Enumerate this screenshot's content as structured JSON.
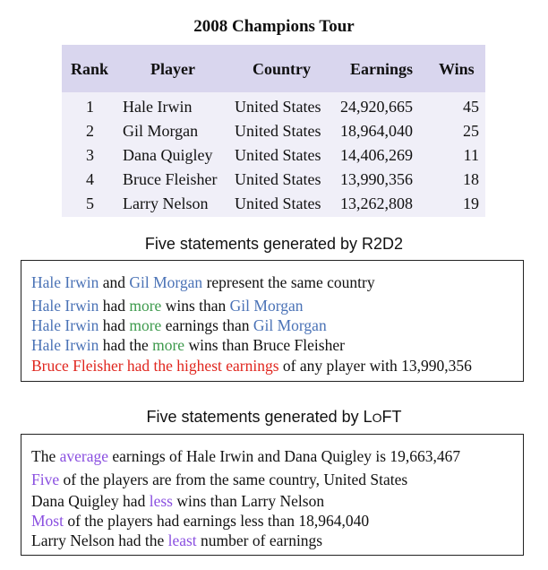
{
  "table": {
    "title": "2008 Champions Tour",
    "headers": [
      "Rank",
      "Player",
      "Country",
      "Earnings",
      "Wins"
    ],
    "rows": [
      [
        "1",
        "Hale Irwin",
        "United States",
        "24,920,665",
        "45"
      ],
      [
        "2",
        "Gil Morgan",
        "United States",
        "18,964,040",
        "25"
      ],
      [
        "3",
        "Dana Quigley",
        "United States",
        "14,406,269",
        "11"
      ],
      [
        "4",
        "Bruce Fleisher",
        "United States",
        "13,990,356",
        "18"
      ],
      [
        "5",
        "Larry Nelson",
        "United States",
        "13,262,808",
        "19"
      ]
    ]
  },
  "r2d2": {
    "heading": "Five statements generated by R2D2",
    "statements": [
      {
        "s1": "Hale Irwin",
        "s2": " and ",
        "s3": "Gil Morgan",
        "s4": " represent the same country"
      },
      {
        "s1": "Hale Irwin",
        "s2": " had ",
        "s3": "more",
        "s4": " wins than ",
        "s5": "Gil Morgan"
      },
      {
        "s1": "Hale Irwin",
        "s2": " had ",
        "s3": "more",
        "s4": " earnings than ",
        "s5": "Gil Morgan"
      },
      {
        "s1": "Hale Irwin",
        "s2": " had the ",
        "s3": "more",
        "s4": " wins than Bruce Fleisher"
      },
      {
        "s1": "Bruce Fleisher had the highest earnings",
        "s2": " of any player with 13,990,356"
      }
    ]
  },
  "loft": {
    "heading_prefix": "Five statements generated by L",
    "heading_sc": "O",
    "heading_suffix": "FT",
    "statements": [
      {
        "s1": "The ",
        "s2": "average",
        "s3": " earnings of Hale Irwin and Dana Quigley is 19,663,467"
      },
      {
        "s1": "Five",
        "s2": " of the players are from the same country, United States"
      },
      {
        "s1": "Dana Quigley had ",
        "s2": "less",
        "s3": " wins than Larry Nelson"
      },
      {
        "s1": "Most",
        "s2": " of the players had earnings less than 18,964,040"
      },
      {
        "s1": "Larry Nelson had the ",
        "s2": "least",
        "s3": " number of earnings"
      }
    ]
  },
  "colors": {
    "entity": "#4a72b6",
    "comparison": "#3d9a4c",
    "error": "#e0261e",
    "operation": "#8a4fe0",
    "header_bg": "#d9d6ee",
    "body_bg": "#f0eff8"
  }
}
